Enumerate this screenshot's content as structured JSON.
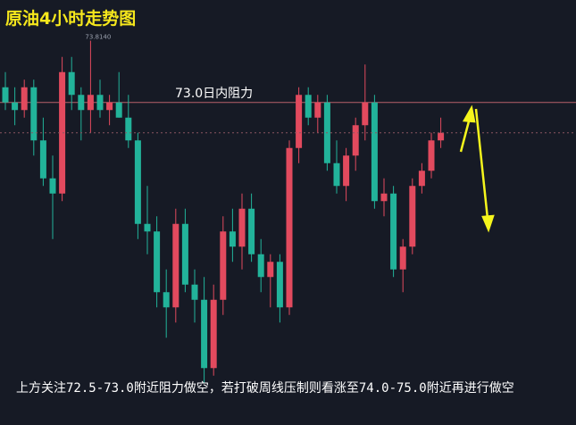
{
  "chart_data": {
    "type": "candlestick",
    "title": "原油4小时走势图",
    "ylim": [
      68.75,
      74.35
    ],
    "up_color": "#e24a5e",
    "down_color": "#22b39a",
    "ohlc": [
      [
        73.2,
        73.4,
        72.9,
        73.0
      ],
      [
        73.0,
        73.2,
        72.7,
        72.9
      ],
      [
        72.9,
        73.3,
        72.8,
        73.2
      ],
      [
        73.2,
        73.3,
        72.3,
        72.5
      ],
      [
        72.5,
        72.8,
        71.9,
        72.0
      ],
      [
        72.0,
        72.3,
        71.2,
        71.8
      ],
      [
        71.8,
        73.6,
        71.7,
        73.4
      ],
      [
        73.4,
        73.6,
        72.9,
        73.1
      ],
      [
        73.1,
        73.2,
        72.5,
        72.9
      ],
      [
        72.9,
        73.814,
        72.6,
        73.1
      ],
      [
        73.1,
        73.3,
        72.8,
        72.9
      ],
      [
        72.9,
        73.1,
        72.7,
        73.0
      ],
      [
        73.0,
        73.4,
        72.8,
        72.8
      ],
      [
        72.8,
        73.1,
        72.4,
        72.5
      ],
      [
        72.5,
        72.6,
        71.2,
        71.4
      ],
      [
        71.4,
        71.9,
        71.0,
        71.3
      ],
      [
        71.3,
        71.5,
        70.3,
        70.5
      ],
      [
        70.5,
        70.8,
        69.9,
        70.3
      ],
      [
        70.3,
        71.6,
        70.1,
        71.4
      ],
      [
        71.4,
        71.6,
        70.5,
        70.6
      ],
      [
        70.6,
        70.8,
        70.1,
        70.4
      ],
      [
        70.4,
        70.7,
        69.3,
        69.5
      ],
      [
        69.5,
        70.6,
        69.4,
        70.4
      ],
      [
        70.4,
        71.5,
        70.2,
        71.3
      ],
      [
        71.3,
        71.6,
        70.9,
        71.1
      ],
      [
        71.1,
        71.8,
        70.8,
        71.6
      ],
      [
        71.6,
        71.8,
        70.9,
        71.0
      ],
      [
        71.0,
        71.2,
        70.5,
        70.7
      ],
      [
        70.7,
        71.0,
        70.3,
        70.9
      ],
      [
        70.9,
        71.0,
        70.1,
        70.3
      ],
      [
        70.3,
        72.5,
        70.2,
        72.4
      ],
      [
        72.4,
        73.2,
        72.2,
        73.1
      ],
      [
        73.1,
        73.2,
        72.7,
        72.8
      ],
      [
        72.8,
        73.1,
        72.6,
        73.0
      ],
      [
        73.0,
        73.1,
        72.1,
        72.2
      ],
      [
        72.2,
        72.5,
        71.8,
        71.9
      ],
      [
        71.9,
        72.4,
        71.7,
        72.3
      ],
      [
        72.3,
        72.8,
        72.1,
        72.7
      ],
      [
        72.7,
        73.5,
        72.5,
        73.0
      ],
      [
        73.0,
        73.1,
        71.6,
        71.7
      ],
      [
        71.7,
        72.0,
        71.5,
        71.8
      ],
      [
        71.8,
        71.9,
        70.7,
        70.8
      ],
      [
        70.8,
        71.2,
        70.5,
        71.1
      ],
      [
        71.1,
        72.0,
        71.0,
        71.9
      ],
      [
        71.9,
        72.2,
        71.8,
        72.1
      ],
      [
        72.1,
        72.6,
        72.0,
        72.5
      ],
      [
        72.5,
        72.8,
        72.4,
        72.6
      ]
    ],
    "high_label": {
      "value": 73.814,
      "label": "73.8140"
    },
    "resistance": {
      "value": 73.0,
      "label": "73.0日内阻力"
    },
    "note": "上方关注72.5-73.0附近阻力做空，若打破周线压制则看涨至74.0-75.0附近再进行做空"
  }
}
